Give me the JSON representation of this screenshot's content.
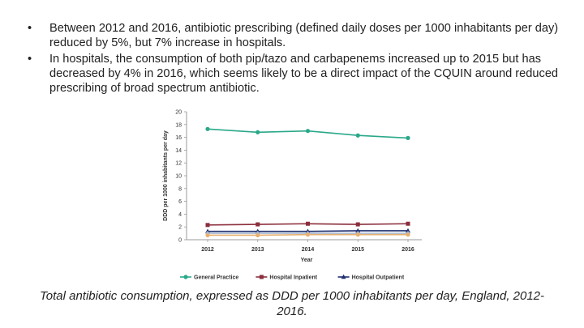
{
  "bullets": [
    "Between 2012 and 2016, antibiotic prescribing (defined daily doses per 1000 inhabitants per day) reduced by 5%, but 7% increase in hospitals.",
    "In hospitals, the consumption of both pip/tazo and carbapenems increased up to 2015 but has decreased by 4% in 2016, which seems likely to be a direct impact of the CQUIN around reduced prescribing of broad spectrum antibiotic."
  ],
  "bullet_symbol": "•",
  "caption": "Total antibiotic consumption, expressed as DDD per 1000 inhabitants per day, England, 2012-2016.",
  "chart_data": {
    "type": "line",
    "title": "",
    "xlabel": "Year",
    "ylabel": "DDD per 1000 inhabitants per day",
    "x": [
      "2012",
      "2013",
      "2014",
      "2015",
      "2016"
    ],
    "ylim": [
      0,
      20
    ],
    "yticks": [
      0,
      2,
      4,
      6,
      8,
      10,
      12,
      14,
      16,
      18,
      20
    ],
    "grid": false,
    "legend_position": "bottom",
    "series": [
      {
        "name": "General Practice",
        "values": [
          17.3,
          16.8,
          17.0,
          16.3,
          15.9
        ],
        "color": "#2aa88a",
        "marker": "circle"
      },
      {
        "name": "Hospital Inpatient",
        "values": [
          2.3,
          2.4,
          2.5,
          2.4,
          2.5
        ],
        "color": "#8b2e3c",
        "marker": "square"
      },
      {
        "name": "Hospital Outpatient",
        "values": [
          1.3,
          1.3,
          1.3,
          1.4,
          1.4
        ],
        "color": "#1f2f6e",
        "marker": "triangle"
      },
      {
        "name": "",
        "values": [
          1.0,
          1.0,
          1.0,
          1.0,
          1.0
        ],
        "color": "#a7b8d6",
        "marker": "diamond"
      },
      {
        "name": "",
        "values": [
          0.7,
          0.7,
          0.8,
          0.8,
          0.8
        ],
        "color": "#e6b070",
        "marker": "circle"
      }
    ]
  }
}
